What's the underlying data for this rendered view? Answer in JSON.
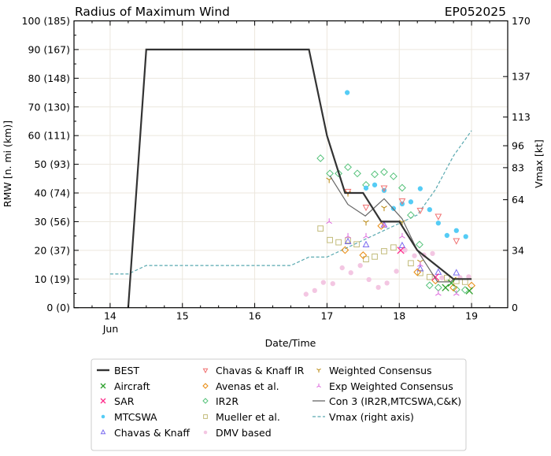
{
  "chart_data": {
    "type": "scatter",
    "title": "Radius of Maximum Wind",
    "subtitle": "EP052025",
    "xlabel": "Date/Time",
    "ylabel": "RMW [n. mi (km)]",
    "y2label": "Vmax [kt]",
    "xlim": [
      13.5,
      19.5
    ],
    "ylim": [
      0,
      100
    ],
    "y2lim": [
      0,
      170
    ],
    "x_ticks": [
      14,
      15,
      16,
      17,
      18,
      19
    ],
    "x_tick_labels": [
      "14",
      "15",
      "16",
      "17",
      "18",
      "19"
    ],
    "x_month_label": "Jun",
    "y_ticks": [
      0,
      10,
      20,
      30,
      40,
      50,
      60,
      70,
      80,
      90,
      100
    ],
    "y_tick_labels": [
      "0 (0)",
      "10 (19)",
      "20 (37)",
      "30 (56)",
      "40 (74)",
      "50 (93)",
      "60 (111)",
      "70 (130)",
      "80 (148)",
      "90 (167)",
      "100 (185)"
    ],
    "y2_ticks": [
      0,
      34,
      64,
      83,
      96,
      113,
      137,
      170
    ],
    "y2_tick_labels": [
      "0",
      "34",
      "64",
      "83",
      "96",
      "113",
      "137",
      "170"
    ],
    "grid": true,
    "legend_placement": "below",
    "series": [
      {
        "name": "BEST",
        "kind": "line",
        "color": "#333333",
        "x": [
          14.25,
          14.5,
          16.75,
          17.0,
          17.25,
          17.5,
          17.75,
          18.0,
          18.25,
          18.5,
          18.75,
          19.0
        ],
        "y": [
          0,
          90,
          90,
          60,
          40,
          40,
          30,
          30,
          20,
          15,
          10,
          10
        ]
      },
      {
        "name": "Aircraft",
        "kind": "marker",
        "marker": "x",
        "color": "#2ca02c",
        "x": [
          18.64,
          18.72,
          18.97
        ],
        "y": [
          7,
          8.6,
          5.9
        ]
      },
      {
        "name": "SAR",
        "kind": "marker",
        "marker": "x",
        "color": "#ff2a8a",
        "x": [
          18.02,
          18.5
        ],
        "y": [
          20,
          10.7
        ]
      },
      {
        "name": "MTCSWA",
        "kind": "marker",
        "marker": "dot",
        "color": "#55ccf5",
        "x": [
          17.28,
          17.54,
          17.66,
          17.79,
          17.92,
          18.04,
          18.16,
          18.29,
          18.42,
          18.54,
          18.66,
          18.79,
          18.92
        ],
        "y": [
          75,
          41.7,
          42.8,
          40.9,
          34.6,
          36.2,
          36.9,
          41.5,
          34.2,
          29.5,
          25.2,
          26.9,
          24.8
        ]
      },
      {
        "name": "Chavas & Knaff",
        "kind": "marker",
        "marker": "triangle-up",
        "color": "#7b6cf0",
        "x": [
          17.29,
          17.54,
          17.79,
          18.04,
          18.29,
          18.54,
          18.79
        ],
        "y": [
          23,
          21.9,
          28.8,
          21.6,
          13.5,
          12.3,
          12.1
        ]
      },
      {
        "name": "Chavas & Knaff IR",
        "kind": "marker",
        "marker": "triangle-down",
        "color": "#f07070",
        "x": [
          17.29,
          17.54,
          17.79,
          18.04,
          18.29,
          18.54,
          18.79
        ],
        "y": [
          40.6,
          35.1,
          41.8,
          37.3,
          34,
          31.9,
          23.4
        ]
      },
      {
        "name": "Avenas et al.",
        "kind": "marker",
        "marker": "diamond",
        "color": "#e8890c",
        "x": [
          17.25,
          17.5,
          17.75,
          18.25,
          18.5,
          18.75,
          19.0
        ],
        "y": [
          20.1,
          18.3,
          28.5,
          12.4,
          9.5,
          7,
          7.7
        ]
      },
      {
        "name": "IR2R",
        "kind": "marker",
        "marker": "diamond",
        "color": "#55c27a",
        "x": [
          16.91,
          17.04,
          17.16,
          17.29,
          17.42,
          17.54,
          17.66,
          17.79,
          17.92,
          18.04,
          18.16,
          18.28,
          18.42,
          18.54,
          18.79,
          18.91
        ],
        "y": [
          52.1,
          46.8,
          46.8,
          49,
          46.8,
          42.8,
          46.5,
          47.3,
          45.8,
          41.8,
          32.3,
          22,
          7.8,
          7,
          6.3,
          6.2
        ]
      },
      {
        "name": "Mueller et al.",
        "kind": "marker",
        "marker": "square",
        "color": "#c2bb7a",
        "x": [
          16.91,
          17.04,
          17.16,
          17.29,
          17.41,
          17.54,
          17.66,
          17.79,
          17.92,
          18.16,
          18.29,
          18.42,
          18.66,
          18.79,
          18.91
        ],
        "y": [
          27.6,
          23.6,
          22.8,
          23.5,
          22.1,
          16.9,
          17.8,
          19.7,
          21,
          15.5,
          12.1,
          10.7,
          10.4,
          9.3,
          9
        ]
      },
      {
        "name": "DMV based",
        "kind": "marker",
        "marker": "dot",
        "color": "#f3c6e2",
        "x": [
          16.71,
          16.83,
          16.95,
          17.08,
          17.21,
          17.33,
          17.46,
          17.58,
          17.71,
          17.83,
          17.96,
          18.08,
          18.21,
          18.34,
          18.46,
          18.59,
          18.84,
          18.96
        ],
        "y": [
          4.7,
          6,
          8.8,
          8.4,
          13.9,
          12.2,
          14.7,
          9.8,
          7.1,
          8.6,
          12.7,
          20.1,
          18.1,
          18.4,
          18.9,
          10.4,
          10.5,
          10.8
        ]
      },
      {
        "name": "Weighted Consensus",
        "kind": "marker",
        "marker": "tri-down",
        "color": "#b8860b",
        "x": [
          17.03,
          17.29,
          17.54,
          17.79,
          18.04,
          18.29,
          18.75
        ],
        "y": [
          44.6,
          39.9,
          29.8,
          34.8,
          29.8,
          16,
          10
        ]
      },
      {
        "name": "Exp Weighted Consensus",
        "kind": "marker",
        "marker": "tri-up",
        "color": "#dd66dd",
        "x": [
          17.03,
          17.29,
          17.54,
          17.79,
          18.04,
          18.29,
          18.54,
          18.79
        ],
        "y": [
          30,
          24.9,
          24.9,
          28.8,
          24.9,
          15,
          4.9,
          4.9
        ]
      },
      {
        "name": "Con 3 (IR2R,MTCSWA,C&K)",
        "kind": "line",
        "color": "#666666",
        "x": [
          17.04,
          17.29,
          17.53,
          17.79,
          18.04,
          18.25,
          18.53,
          18.71,
          18.75
        ],
        "y": [
          46,
          36,
          32,
          38,
          31,
          20,
          9,
          9,
          10
        ]
      },
      {
        "name": "Vmax (right axis)",
        "kind": "dashed",
        "axis": "right",
        "color": "#5aa9b0",
        "x": [
          14.0,
          14.25,
          14.5,
          16.5,
          16.75,
          17.0,
          17.25,
          17.5,
          17.75,
          18.0,
          18.25,
          18.5,
          18.75,
          19.0
        ],
        "y": [
          20,
          20,
          25,
          25,
          30,
          30,
          35,
          40,
          45,
          50,
          55,
          70,
          90,
          105
        ]
      }
    ],
    "legend_order": [
      0,
      1,
      2,
      3,
      4,
      5,
      6,
      7,
      8,
      9,
      10,
      11,
      12,
      13
    ]
  }
}
